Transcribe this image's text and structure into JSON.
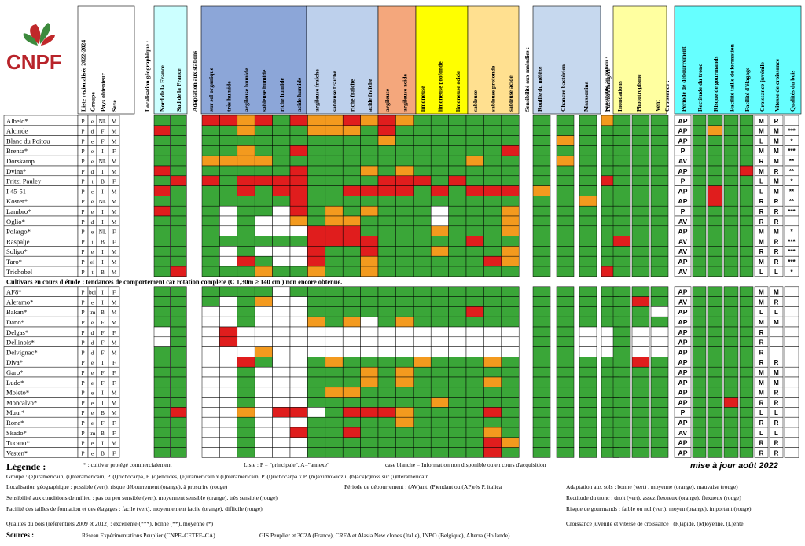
{
  "logo": {
    "text": "CNPF",
    "colors": {
      "leaf_red": "#c0282a",
      "leaf_green": "#3d8a3d",
      "text": "#b8232a"
    }
  },
  "colors": {
    "green": "#3aa638",
    "orange": "#f39a1e",
    "red": "#e01d1d",
    "white": "#ffffff"
  },
  "headers": {
    "info": [
      "Liste régionalisée 2022-2024",
      "Groupe",
      "Pays obtenteur",
      "Sexe"
    ],
    "section_localisation": "Localisation géographique :",
    "localisation": [
      "Nord de la France",
      "Sud de la France"
    ],
    "section_adaptation": "Adaptation aux stations",
    "adaptation": [
      "sur sol organique",
      "très humide",
      "argileuse humide",
      "sableuse humide",
      "riche humide",
      "acide humide",
      "argileuse fraîche",
      "sableuse fraîche",
      "riche fraîche",
      "acide fraîche",
      "argileuse",
      "argileuse acide",
      "limoneuse",
      "limoneuse profonde",
      "limoneuse acide",
      "sableuse",
      "sableuse profonde",
      "sableuse acide"
    ],
    "section_maladies": "Sensibilité aux maladies :",
    "maladies": [
      "Rouille du mélèze",
      "Chancre bactérien",
      "Marssonina",
      "Puceron lanigère"
    ],
    "section_milieu": "Sensibilité au milieu :",
    "milieu": [
      "Inondations",
      "Phototropisme",
      "Vent"
    ],
    "section_croissance": "Croissance :",
    "croissance": [
      "Période de débourrement",
      "Rectitude du tronc",
      "Risque de gourmands",
      "Facilité taille de formation",
      "Facilité d'élagage",
      "Croissance juvénile",
      "Vitesse de croissance",
      "Qualités du bois"
    ]
  },
  "section2_title": "Cultivars en cours d'étude : tendances de comportement car rotation complete (C 1,30m ≥ 140 cm ) non encore obtenue.",
  "cultivars_listed": [
    {
      "name": "Albelo*",
      "info": [
        "P",
        "e",
        "NL",
        "M"
      ],
      "loc": "GG",
      "ad": "RRORGROOROROGGGGGG",
      "mal": "GGGO",
      "mil": "GGG",
      "cr": [
        "AP",
        "G",
        "G",
        "G",
        "G",
        "M",
        "R",
        ""
      ]
    },
    {
      "name": "Alcinde",
      "info": [
        "P",
        "d",
        "F",
        "M"
      ],
      "loc": "RG",
      "ad": "GGOGGGOOOGRGGGGGGG",
      "mal": "GGGG",
      "mil": "GGG",
      "cr": [
        "AP",
        "G",
        "O",
        "G",
        "G",
        "M",
        "M",
        "***"
      ]
    },
    {
      "name": "Blanc du Poitou",
      "info": [
        "P",
        "e",
        "F",
        "M"
      ],
      "loc": "GG",
      "ad": "GGGGGGGGGGOGGGGGGG",
      "mal": "GOGG",
      "mil": "GGG",
      "cr": [
        "AP",
        "G",
        "G",
        "G",
        "G",
        "L",
        "M",
        "*"
      ]
    },
    {
      "name": "Brenta*",
      "info": [
        "P",
        "e",
        "I",
        "F"
      ],
      "loc": "GG",
      "ad": "GGOGGRGGGGGGGGGGGR",
      "mal": "GGGG",
      "mil": "GGG",
      "cr": [
        "P",
        "G",
        "G",
        "G",
        "G",
        "M",
        "M",
        "***"
      ]
    },
    {
      "name": "Dorskamp",
      "info": [
        "P",
        "e",
        "NL",
        "M"
      ],
      "loc": "GG",
      "ad": "OOOOGGGGGGGGGGGOGG",
      "mal": "GOGG",
      "mil": "GGG",
      "cr": [
        "AV",
        "G",
        "G",
        "G",
        "G",
        "R",
        "M",
        "**"
      ]
    },
    {
      "name": "Dvina*",
      "info": [
        "P",
        "d",
        "I",
        "M"
      ],
      "loc": "RG",
      "ad": "GGGGGRGGGOGOGGGGGG",
      "mal": "GGGG",
      "mil": "GGG",
      "cr": [
        "AP",
        "G",
        "G",
        "G",
        "R",
        "M",
        "R",
        "**"
      ]
    },
    {
      "name": "Fritzi Pauley",
      "info": [
        "P",
        "t",
        "B",
        "F"
      ],
      "loc": "GR",
      "ad": "RGRRRRGGGGRRRGRGGG",
      "mal": "GGGR",
      "mil": "GGG",
      "cr": [
        "P",
        "G",
        "G",
        "G",
        "G",
        "L",
        "M",
        "*"
      ]
    },
    {
      "name": "I 45-51",
      "info": [
        "P",
        "e",
        "I",
        "M"
      ],
      "loc": "RG",
      "ad": "GGRGRRGGRRRRGRGRRR",
      "mal": "OGGG",
      "mil": "GGG",
      "cr": [
        "AP",
        "G",
        "R",
        "G",
        "G",
        "L",
        "M",
        "**"
      ]
    },
    {
      "name": "Koster*",
      "info": [
        "P",
        "e",
        "NL",
        "M"
      ],
      "loc": "GG",
      "ad": "GGGGGRGGGGGGGGGGGG",
      "mal": "GGOG",
      "mil": "GGG",
      "cr": [
        "AP",
        "G",
        "R",
        "G",
        "G",
        "R",
        "R",
        "**"
      ]
    },
    {
      "name": "Lambro*",
      "info": [
        "P",
        "e",
        "I",
        "M"
      ],
      "loc": "RG",
      "ad": "GWGGWRGOGOGGGWGGGO",
      "mal": "GGGG",
      "mil": "GGG",
      "cr": [
        "P",
        "G",
        "G",
        "G",
        "G",
        "R",
        "R",
        "***"
      ]
    },
    {
      "name": "Oglio*",
      "info": [
        "P",
        "d",
        "I",
        "M"
      ],
      "loc": "GG",
      "ad": "GWGWWOGOOGGGGWGGGO",
      "mal": "GGGG",
      "mil": "GGG",
      "cr": [
        "AV",
        "G",
        "G",
        "G",
        "G",
        "R",
        "R",
        ""
      ]
    },
    {
      "name": "Polargo*",
      "info": [
        "P",
        "e",
        "NL",
        "F"
      ],
      "loc": "GG",
      "ad": "GWGWWWRRRGGGGOGGGO",
      "mal": "GGGG",
      "mil": "GGG",
      "cr": [
        "AP",
        "G",
        "G",
        "G",
        "G",
        "M",
        "M",
        "*"
      ]
    },
    {
      "name": "Raspalje",
      "info": [
        "P",
        "i",
        "B",
        "F"
      ],
      "loc": "GG",
      "ad": "GGGGGGRRRRGGGGGRGG",
      "mal": "GGGG",
      "mil": "RGG",
      "cr": [
        "AV",
        "G",
        "G",
        "G",
        "G",
        "M",
        "R",
        "***"
      ]
    },
    {
      "name": "Soligo*",
      "info": [
        "P",
        "e",
        "I",
        "M"
      ],
      "loc": "GG",
      "ad": "GWGWWWRGGRGGGOGGGO",
      "mal": "GGGG",
      "mil": "GGG",
      "cr": [
        "AV",
        "G",
        "G",
        "G",
        "G",
        "R",
        "R",
        "***"
      ]
    },
    {
      "name": "Taro*",
      "info": [
        "P",
        "ei",
        "I",
        "M"
      ],
      "loc": "GG",
      "ad": "GWRGWWRGGOGGGGGGRO",
      "mal": "GGGG",
      "mil": "GGG",
      "cr": [
        "AP",
        "G",
        "G",
        "G",
        "G",
        "M",
        "R",
        "***"
      ]
    },
    {
      "name": "Trichobel",
      "info": [
        "P",
        "t",
        "B",
        "M"
      ],
      "loc": "GR",
      "ad": "GGGOGGOGGOGGGGGGGG",
      "mal": "GGGR",
      "mil": "GGG",
      "cr": [
        "AV",
        "G",
        "G",
        "G",
        "G",
        "L",
        "L",
        "*"
      ]
    }
  ],
  "cultivars_study": [
    {
      "name": "AF8*",
      "info": [
        "P",
        "bci",
        "I",
        "F"
      ],
      "loc": "GG",
      "ad": "GGGGWGGGGGGGGGGGGG",
      "mal": "GGGG",
      "mil": "GGG",
      "cr": [
        "AP",
        "G",
        "G",
        "G",
        "G",
        "M",
        "M",
        ""
      ]
    },
    {
      "name": "Aleramo*",
      "info": [
        "P",
        "e",
        "I",
        "M"
      ],
      "loc": "GG",
      "ad": "GWGOWWGGGGGGGGGGGG",
      "mal": "GGGG",
      "mil": "GRG",
      "cr": [
        "AV",
        "G",
        "G",
        "G",
        "G",
        "M",
        "R",
        ""
      ]
    },
    {
      "name": "Bakan*",
      "info": [
        "P",
        "tm",
        "B",
        "M"
      ],
      "loc": "GG",
      "ad": "WWGWWWGGGGGGGGGRGG",
      "mal": "GGGG",
      "mil": "GGW",
      "cr": [
        "AP",
        "G",
        "G",
        "G",
        "G",
        "L",
        "L",
        ""
      ]
    },
    {
      "name": "Dano*",
      "info": [
        "P",
        "e",
        "F",
        "M"
      ],
      "loc": "GG",
      "ad": "WWGWWWOGOWGOGGGGGG",
      "mal": "GGGG",
      "mil": "GGG",
      "cr": [
        "AP",
        "G",
        "G",
        "G",
        "G",
        "M",
        "M",
        ""
      ]
    },
    {
      "name": "Delgas*",
      "info": [
        "P",
        "d",
        "F",
        "F"
      ],
      "loc": "WG",
      "ad": "WRWWWWWWWWWWWWWWWW",
      "mal": "GGWW",
      "mil": "GWW",
      "cr": [
        "AP",
        "G",
        "G",
        "G",
        "G",
        "R",
        "",
        ""
      ]
    },
    {
      "name": "Dellinois*",
      "info": [
        "P",
        "d",
        "F",
        "M"
      ],
      "loc": "WG",
      "ad": "WRWWWWWWWWWWWWWWWW",
      "mal": "GGWW",
      "mil": "GWW",
      "cr": [
        "AP",
        "G",
        "G",
        "G",
        "G",
        "R",
        "",
        ""
      ]
    },
    {
      "name": "Delvignac*",
      "info": [
        "P",
        "d",
        "F",
        "M"
      ],
      "loc": "GG",
      "ad": "WWWOWWWWWWWWWWWWWW",
      "mal": "GGWW",
      "mil": "GWW",
      "cr": [
        "AP",
        "G",
        "G",
        "G",
        "G",
        "R",
        "",
        ""
      ]
    },
    {
      "name": "Diva*",
      "info": [
        "P",
        "e",
        "I",
        "F"
      ],
      "loc": "GG",
      "ad": "WWRGWWGOGGGGOGGGOG",
      "mal": "GGGG",
      "mil": "GRG",
      "cr": [
        "AP",
        "G",
        "G",
        "G",
        "G",
        "R",
        "R",
        ""
      ]
    },
    {
      "name": "Garo*",
      "info": [
        "P",
        "e",
        "F",
        "F"
      ],
      "loc": "GG",
      "ad": "WWGWWWGGGOGOGGGGGG",
      "mal": "GGGG",
      "mil": "GGG",
      "cr": [
        "AP",
        "G",
        "G",
        "G",
        "G",
        "M",
        "M",
        ""
      ]
    },
    {
      "name": "Ludo*",
      "info": [
        "P",
        "e",
        "F",
        "F"
      ],
      "loc": "GG",
      "ad": "WWGWWWGGGOGOGGGGOG",
      "mal": "GGGG",
      "mil": "GGG",
      "cr": [
        "AP",
        "G",
        "G",
        "G",
        "G",
        "M",
        "M",
        ""
      ]
    },
    {
      "name": "Moleto*",
      "info": [
        "P",
        "e",
        "I",
        "M"
      ],
      "loc": "GG",
      "ad": "WWGWWWGOOGGGGGGGGG",
      "mal": "GGGG",
      "mil": "GGG",
      "cr": [
        "AP",
        "G",
        "G",
        "G",
        "G",
        "M",
        "R",
        ""
      ]
    },
    {
      "name": "Moncalvo*",
      "info": [
        "P",
        "e",
        "I",
        "M"
      ],
      "loc": "GG",
      "ad": "WWGWWWGGGGGGGOGGGG",
      "mal": "GGGG",
      "mil": "GGG",
      "cr": [
        "AP",
        "G",
        "G",
        "R",
        "G",
        "R",
        "R",
        ""
      ]
    },
    {
      "name": "Muur*",
      "info": [
        "P",
        "e",
        "B",
        "M"
      ],
      "loc": "GR",
      "ad": "WWOWRRWGRRROGGGGRG",
      "mal": "GGGG",
      "mil": "GGG",
      "cr": [
        "P",
        "G",
        "G",
        "G",
        "G",
        "L",
        "L",
        ""
      ]
    },
    {
      "name": "Rona*",
      "info": [
        "P",
        "e",
        "F",
        "F"
      ],
      "loc": "GG",
      "ad": "WWGWWWGGGGGOGGGGGG",
      "mal": "GGGG",
      "mil": "GGG",
      "cr": [
        "AP",
        "G",
        "G",
        "G",
        "G",
        "R",
        "R",
        ""
      ]
    },
    {
      "name": "Skado*",
      "info": [
        "P",
        "tm",
        "B",
        "F"
      ],
      "loc": "GG",
      "ad": "WWGWWRGGRGGGGGGGOG",
      "mal": "GGGG",
      "mil": "GGG",
      "cr": [
        "AV",
        "G",
        "G",
        "G",
        "G",
        "L",
        "L",
        ""
      ]
    },
    {
      "name": "Tucano*",
      "info": [
        "P",
        "e",
        "I",
        "M"
      ],
      "loc": "GG",
      "ad": "WWGWWWGGGGGGGGGGRO",
      "mal": "GGGG",
      "mil": "GGG",
      "cr": [
        "AP",
        "G",
        "G",
        "G",
        "G",
        "R",
        "R",
        ""
      ]
    },
    {
      "name": "Vesten*",
      "info": [
        "P",
        "e",
        "B",
        "F"
      ],
      "loc": "GG",
      "ad": "WWGWWWGGGGGGGGGGRG",
      "mal": "GGGG",
      "mil": "GGG",
      "cr": [
        "AP",
        "G",
        "G",
        "G",
        "G",
        "R",
        "R",
        ""
      ]
    }
  ],
  "legend": {
    "title": "Légende :",
    "star_note": "* : cultivar protégé commercialement",
    "liste_note": "Liste : P = \"principale\", A=\"annexe\"",
    "blank_note": "case blanche = Information non disponible ou en cours d'acquisition",
    "updated": "mise à jour août 2022",
    "groupe": "Groupe : (e)uraméricain, (i)ntéraméricain, P. (t)richocarpa, P. (d)eltoïdes, (e)uraméricain x (i)nteraméricain, P. (t)richocarpa x P. (m)aximowiczii, (b)ack(c)ross sur (i)nteraméricain",
    "localisation": "Localisation géographique : possible (vert), risque débourrement (orange), à proscrire (rouge)",
    "debourrement": "Période de débourrement : (AV)ant, (P)endant ou (AP)rès P. italica",
    "adaptation": "Adaptation aux sols : bonne (vert) , moyenne (orange), mauvaise (rouge)",
    "sensibilite": "Sensibilité aux conditions de milieu : pas ou peu sensible (vert), moyennent sensible (orange), très sensible (rouge)",
    "rectitude": "Rectitude du tronc : droit (vert), assez flexueux (orange), flexueux (rouge)",
    "facilite": "Facilité des tailles de formation et des élagages : facile (vert), moyennement facile (orange), difficile (rouge)",
    "gourmands": "Risque de gourmands : faible ou nul (vert), moyen (orange), important (rouge)",
    "qualites": "Qualités du bois (référentiels 2009 et 2012) : excellente (***), bonne (**), moyenne (*)",
    "croissance": "Croissance juvénile et vitesse de croissance : (R)apide, (M)oyenne, (L)ente",
    "sources_label": "Sources :",
    "sources1": "Réseau Expérimentations Peuplier (CNPF–CETEF–CA)",
    "sources2": "GIS Peuplier et 3C2A (France), CREA et Alasia New clones (Italie), INBO (Belgique), Alterra (Hollande)"
  }
}
